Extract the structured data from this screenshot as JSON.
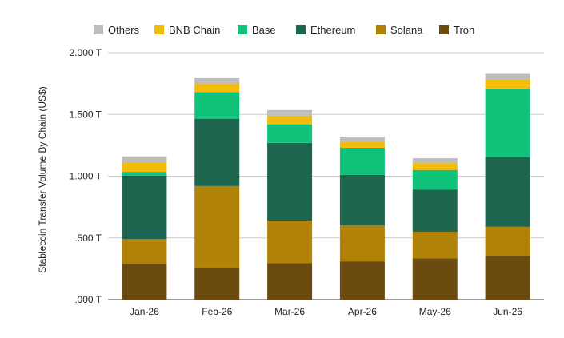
{
  "chart_data": {
    "type": "bar",
    "stacked": true,
    "categories": [
      "Jan-26",
      "Feb-26",
      "Mar-26",
      "Apr-26",
      "May-26",
      "Jun-26"
    ],
    "ylabel": "Stablecoin Transfer Volume By Chain (US$)",
    "xlabel": "",
    "ylim": [
      0,
      2.0
    ],
    "yticks": [
      0,
      0.5,
      1.0,
      1.5,
      2.0
    ],
    "ytick_labels": [
      ".000 T",
      ".500 T",
      "1.000 T",
      "1.500 T",
      "2.000 T"
    ],
    "grid": true,
    "legend_position": "top",
    "legend_order": [
      "Others",
      "BNB Chain",
      "Base",
      "Ethereum",
      "Solana",
      "Tron"
    ],
    "series": [
      {
        "name": "Tron",
        "color": "#6b4b10",
        "values": [
          0.29,
          0.255,
          0.295,
          0.31,
          0.335,
          0.355
        ]
      },
      {
        "name": "Solana",
        "color": "#b08306",
        "values": [
          0.2,
          0.665,
          0.345,
          0.29,
          0.215,
          0.235
        ]
      },
      {
        "name": "Ethereum",
        "color": "#1e6650",
        "values": [
          0.515,
          0.545,
          0.63,
          0.41,
          0.34,
          0.565
        ]
      },
      {
        "name": "Base",
        "color": "#10c27a",
        "values": [
          0.03,
          0.215,
          0.15,
          0.22,
          0.16,
          0.555
        ]
      },
      {
        "name": "BNB Chain",
        "color": "#f2bc0b",
        "values": [
          0.075,
          0.07,
          0.07,
          0.045,
          0.055,
          0.075
        ]
      },
      {
        "name": "Others",
        "color": "#bdbdbd",
        "values": [
          0.05,
          0.05,
          0.045,
          0.045,
          0.04,
          0.05
        ]
      }
    ]
  }
}
